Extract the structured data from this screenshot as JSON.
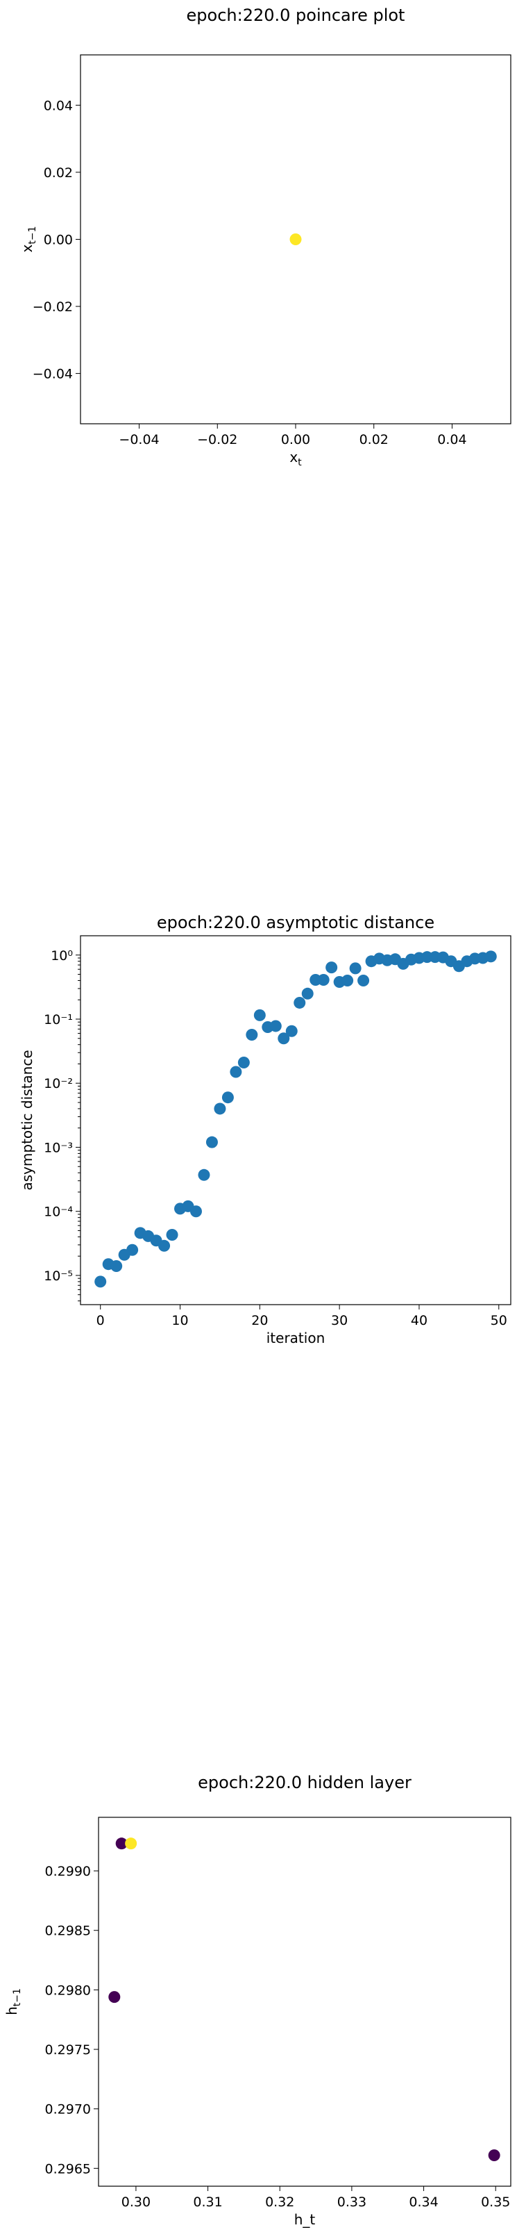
{
  "chart_data": [
    {
      "type": "scatter",
      "title": "epoch:220.0 poincare plot",
      "xlabel": "x_t",
      "ylabel": "x_{t-1}",
      "xlim": [
        -0.055,
        0.055
      ],
      "ylim": [
        -0.055,
        0.055
      ],
      "xticks": [
        -0.04,
        -0.02,
        0.0,
        0.02,
        0.04
      ],
      "xtick_labels": [
        "−0.04",
        "−0.02",
        "0.00",
        "0.02",
        "0.04"
      ],
      "yticks": [
        0.04,
        0.02,
        0.0,
        -0.02,
        -0.04
      ],
      "ytick_labels": [
        "0.04",
        "0.02",
        "0.00",
        "−0.02",
        "−0.04"
      ],
      "points": [
        {
          "x": 0.0,
          "y": 0.0,
          "color": "#fde725"
        }
      ]
    },
    {
      "type": "scatter",
      "title": "epoch:220.0 asymptotic distance",
      "xlabel": "iteration",
      "ylabel": "asymptotic distance",
      "yscale": "log",
      "xlim": [
        -2.5,
        51.5
      ],
      "ylim": [
        3.5e-06,
        2.0
      ],
      "xticks": [
        0,
        10,
        20,
        30,
        40,
        50
      ],
      "xtick_labels": [
        "0",
        "10",
        "20",
        "30",
        "40",
        "50"
      ],
      "yticks": [
        1,
        0.1,
        0.01,
        0.001,
        0.0001,
        1e-05
      ],
      "ytick_labels": [
        "10⁰",
        "10⁻¹",
        "10⁻²",
        "10⁻³",
        "10⁻⁴",
        "10⁻⁵"
      ],
      "color": "#1f77b4",
      "x": [
        0,
        1,
        2,
        3,
        4,
        5,
        6,
        7,
        8,
        9,
        10,
        11,
        12,
        13,
        14,
        15,
        16,
        17,
        18,
        19,
        20,
        21,
        22,
        23,
        24,
        25,
        26,
        27,
        28,
        29,
        30,
        31,
        32,
        33,
        34,
        35,
        36,
        37,
        38,
        39,
        40,
        41,
        42,
        43,
        44,
        45,
        46,
        47,
        48,
        49
      ],
      "y": [
        8e-06,
        1.5e-05,
        1.4e-05,
        2.1e-05,
        2.5e-05,
        4.6e-05,
        4.1e-05,
        3.5e-05,
        2.9e-05,
        4.3e-05,
        0.00011,
        0.00012,
        0.0001,
        0.00037,
        0.0012,
        0.004,
        0.006,
        0.015,
        0.021,
        0.057,
        0.115,
        0.075,
        0.078,
        0.05,
        0.065,
        0.18,
        0.25,
        0.41,
        0.41,
        0.64,
        0.38,
        0.4,
        0.62,
        0.4,
        0.8,
        0.88,
        0.83,
        0.86,
        0.73,
        0.85,
        0.9,
        0.93,
        0.93,
        0.92,
        0.8,
        0.67,
        0.8,
        0.88,
        0.9,
        0.95
      ]
    },
    {
      "type": "scatter",
      "title": "epoch:220.0 hidden layer",
      "xlabel": "h_t",
      "ylabel": "h_{t-1}",
      "xlim": [
        0.2948,
        0.3521
      ],
      "ylim": [
        0.29635,
        0.29945
      ],
      "xticks": [
        0.3,
        0.31,
        0.32,
        0.33,
        0.34,
        0.35
      ],
      "xtick_labels": [
        "0.30",
        "0.31",
        "0.32",
        "0.33",
        "0.34",
        "0.35"
      ],
      "yticks": [
        0.299,
        0.2985,
        0.298,
        0.2975,
        0.297,
        0.2965
      ],
      "ytick_labels": [
        "0.2990",
        "0.2985",
        "0.2980",
        "0.2975",
        "0.2970",
        "0.2965"
      ],
      "points": [
        {
          "x": 0.298,
          "y": 0.29923,
          "color": "#440154"
        },
        {
          "x": 0.2993,
          "y": 0.29923,
          "color": "#fde725"
        },
        {
          "x": 0.297,
          "y": 0.29794,
          "color": "#440154"
        },
        {
          "x": 0.3498,
          "y": 0.29661,
          "color": "#440154"
        }
      ]
    }
  ]
}
